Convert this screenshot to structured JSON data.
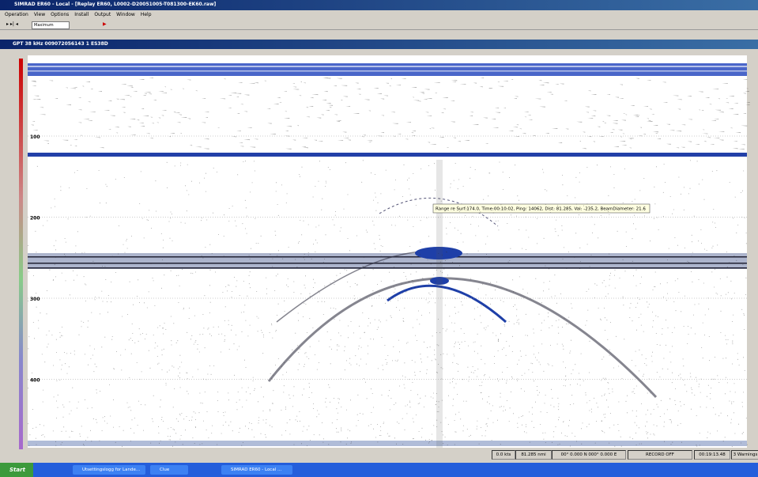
{
  "window": {
    "title": "SIMRAD ER60 - Local - [Replay ER60, L0002-D20051005-T081300-EK60.raw]",
    "menu": [
      "Operation",
      "View",
      "Options",
      "Install",
      "Output",
      "Window",
      "Help"
    ],
    "toolbar": {
      "dropdown": "Maximum"
    }
  },
  "echogram": {
    "title": "GPT 38 kHz 009072056143 1 ES38D",
    "depth_labels": [
      "100",
      "200",
      "300",
      "400"
    ],
    "tooltip": "Range re Surf:174.0, Time:00:10:02, Ping: 14062, Dist: 81.285, Val: -235.2, BeamDiameter: 21.6"
  },
  "status_bar": [
    "0.0 kts",
    "81.285 nmi",
    "00° 0.000 N 000° 0.000 E",
    "RECORD OFF",
    "00:19:13.48",
    "3 Warnings"
  ],
  "taskbar": {
    "start": "Start",
    "items": [
      "Utsettingslogg for Lande...",
      "Clue",
      "SIMRAD ER60 - Local ..."
    ]
  }
}
